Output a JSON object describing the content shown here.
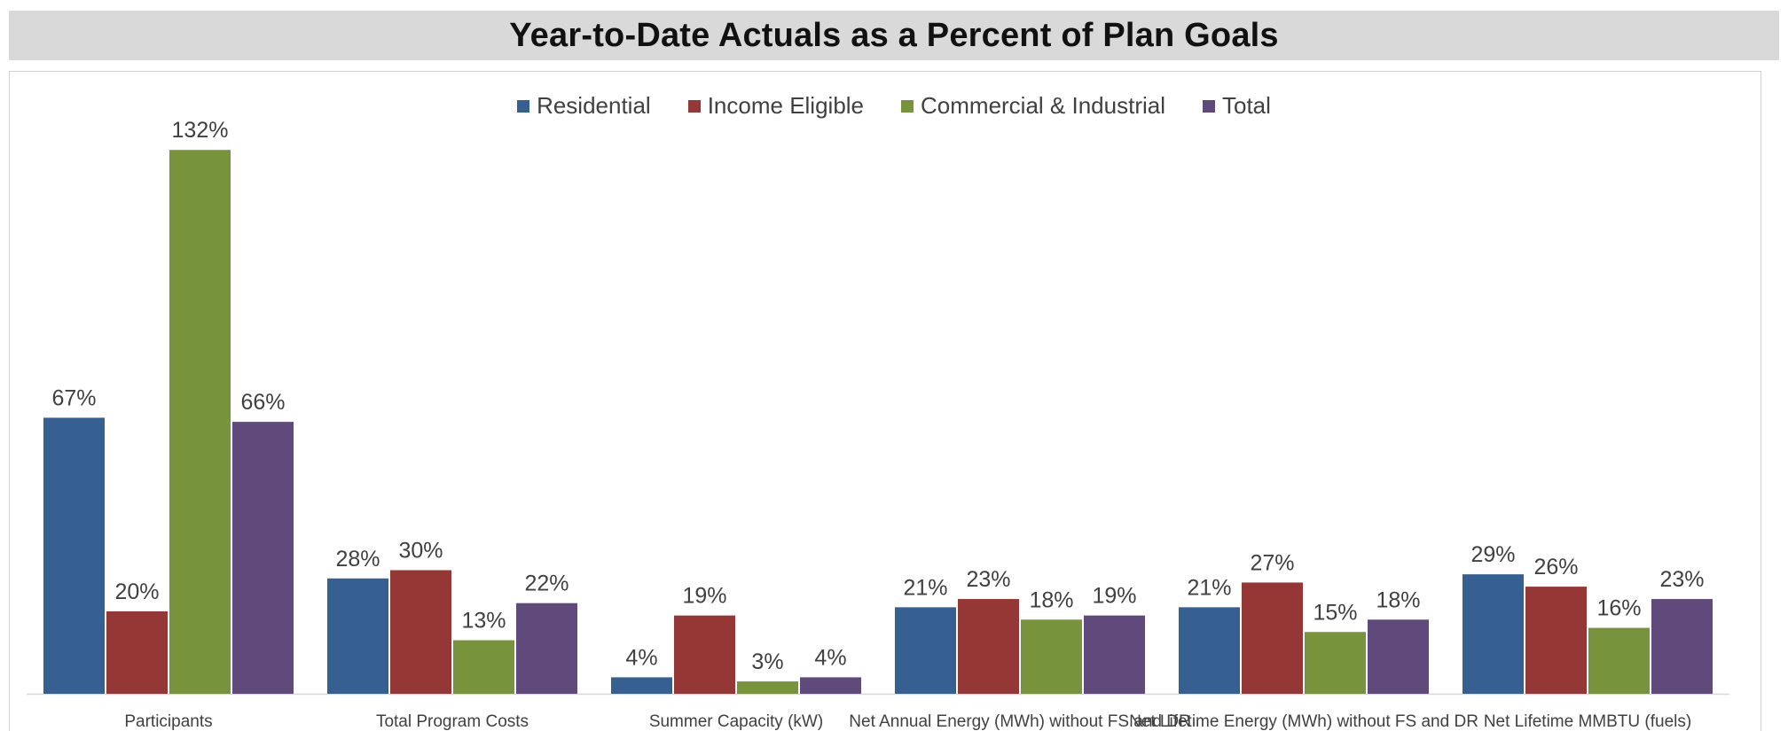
{
  "title": "Year-to-Date Actuals as a Percent of Plan Goals",
  "chart_data": {
    "type": "bar",
    "title": "Year-to-Date Actuals as a Percent of Plan Goals",
    "xlabel": "",
    "ylabel": "",
    "ylim": [
      0,
      1.4
    ],
    "grid": false,
    "legend_position": "top",
    "categories": [
      "Participants",
      "Total Program Costs",
      "Summer Capacity (kW)",
      "Net Annual Energy (MWh) without FS and DR",
      "Net Lifetime Energy (MWh) without FS and DR",
      "Net Lifetime MMBTU (fuels)"
    ],
    "series": [
      {
        "name": "Residential",
        "color": "#376092",
        "values": [
          0.67,
          0.28,
          0.04,
          0.21,
          0.21,
          0.29
        ],
        "labels": [
          "67%",
          "28%",
          "4%",
          "21%",
          "21%",
          "29%"
        ]
      },
      {
        "name": "Income Eligible",
        "color": "#953735",
        "values": [
          0.2,
          0.3,
          0.19,
          0.23,
          0.27,
          0.26
        ],
        "labels": [
          "20%",
          "30%",
          "19%",
          "23%",
          "27%",
          "26%"
        ]
      },
      {
        "name": "Commercial & Industrial",
        "color": "#77933c",
        "values": [
          1.32,
          0.13,
          0.03,
          0.18,
          0.15,
          0.16
        ],
        "labels": [
          "132%",
          "13%",
          "3%",
          "18%",
          "15%",
          "16%"
        ]
      },
      {
        "name": "Total",
        "color": "#604a7b",
        "values": [
          0.66,
          0.22,
          0.04,
          0.19,
          0.18,
          0.23
        ],
        "labels": [
          "66%",
          "22%",
          "4%",
          "19%",
          "18%",
          "23%"
        ]
      }
    ]
  }
}
